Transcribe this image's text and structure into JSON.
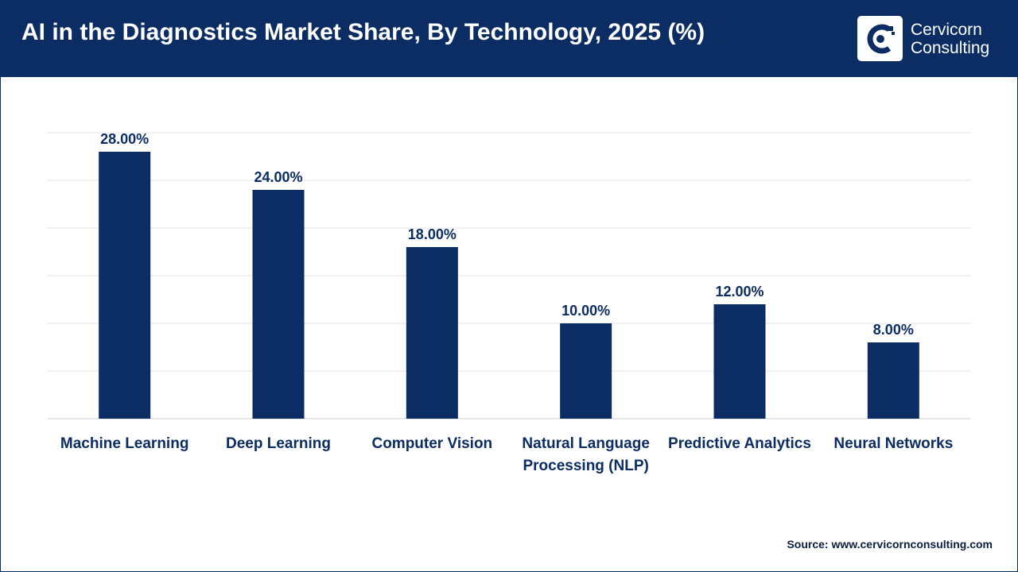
{
  "header": {
    "title": "AI in the Diagnostics Market Share, By Technology, 2025 (%)"
  },
  "logo": {
    "line1": "Cervicorn",
    "line2": "Consulting",
    "icon": "cervicorn-logo-icon"
  },
  "colors": {
    "header_bg": "#0b2d63",
    "bar": "#0b2d63",
    "label": "#0b2d63",
    "grid": "#e3e3e3"
  },
  "chart_data": {
    "type": "bar",
    "title": "AI in the Diagnostics Market Share, By Technology, 2025 (%)",
    "categories": [
      [
        "Machine Learning"
      ],
      [
        "Deep Learning"
      ],
      [
        "Computer Vision"
      ],
      [
        "Natural Language",
        "Processing (NLP)"
      ],
      [
        "Predictive Analytics"
      ],
      [
        "Neural Networks"
      ]
    ],
    "values": [
      28,
      24,
      18,
      10,
      12,
      8
    ],
    "data_labels": [
      "28.00%",
      "24.00%",
      "18.00%",
      "10.00%",
      "12.00%",
      "8.00%"
    ],
    "ylim": [
      0,
      30
    ],
    "xlabel": "",
    "ylabel": "",
    "grid": true,
    "legend": "none"
  },
  "footer": {
    "source": "Source: www.cervicornconsulting.com"
  }
}
